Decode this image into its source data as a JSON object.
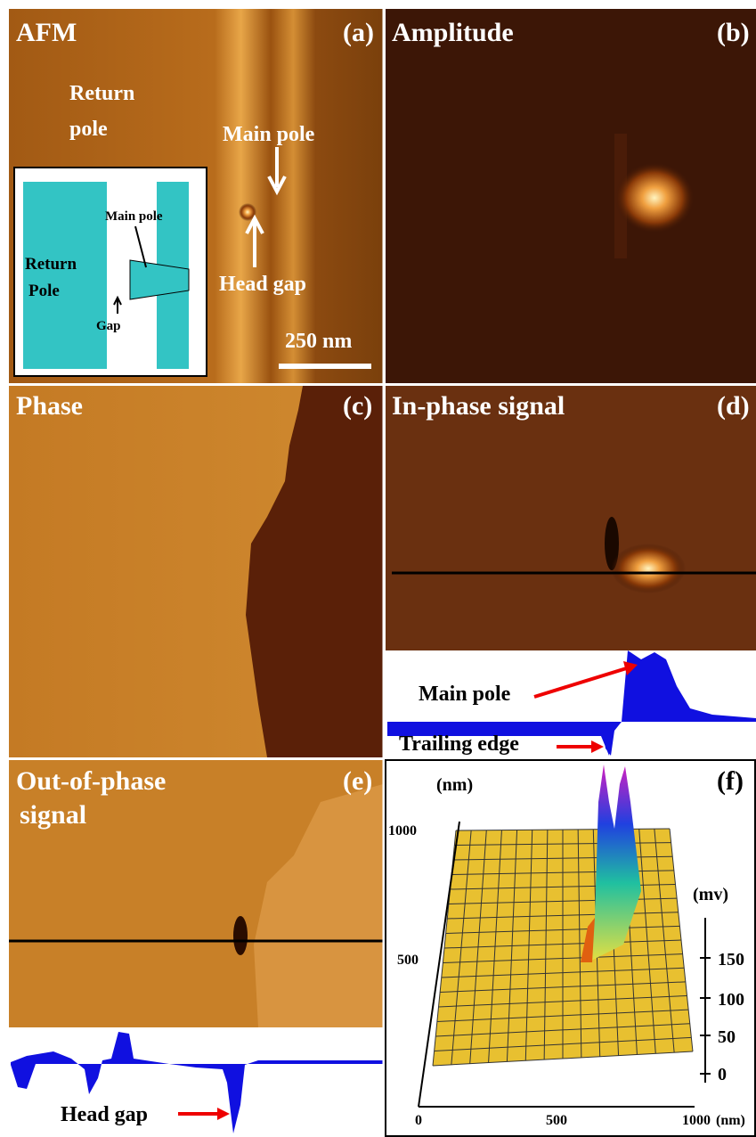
{
  "panels": {
    "a": {
      "title": "AFM",
      "label": "(a)",
      "annotations": [
        "Return",
        "pole",
        "Main pole",
        "Head gap"
      ],
      "scale_bar": "250 nm",
      "inset": {
        "return_pole": [
          "Return",
          "Pole"
        ],
        "main_pole": "Main pole",
        "gap": "Gap"
      }
    },
    "b": {
      "title": "Amplitude",
      "label": "(b)"
    },
    "c": {
      "title": "Phase",
      "label": "(c)"
    },
    "d": {
      "title": "In-phase signal",
      "label": "(d)",
      "annotations": [
        "Main pole",
        "Trailing edge"
      ]
    },
    "e": {
      "title_lines": [
        "Out-of-phase",
        "signal"
      ],
      "label": "(e)",
      "annotations": [
        "Head gap"
      ]
    },
    "f": {
      "label": "(f)",
      "y_unit": "(nm)",
      "y_ticks": [
        1000,
        500
      ],
      "x_ticks": [
        0,
        500,
        1000
      ],
      "x_unit": "(nm)",
      "z_unit": "(mv)",
      "z_ticks": [
        150,
        100,
        50,
        0
      ]
    }
  }
}
